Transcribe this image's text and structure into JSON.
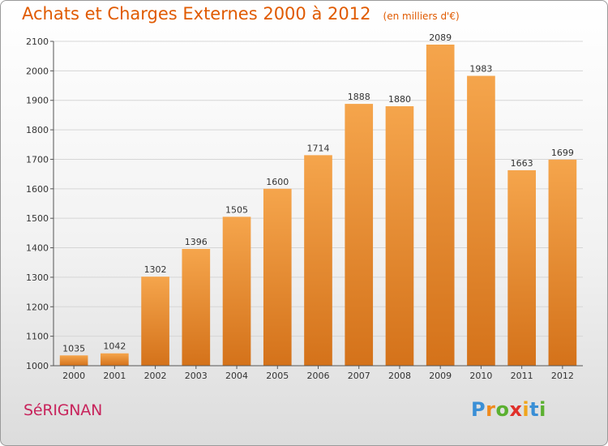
{
  "title": "Achats et Charges Externes 2000 à 2012",
  "subtitle": "(en milliers d'€)",
  "city": "SéRIGNAN",
  "logo": {
    "text": "Proxiti",
    "letter_colors": [
      "#3a8fd6",
      "#f08a1c",
      "#5bb030",
      "#e0302a",
      "#f0a51c",
      "#3a8fd6",
      "#5bb030"
    ]
  },
  "colors": {
    "bar_top": "#f5a54c",
    "bar_bottom": "#d4721a",
    "title": "#e05a00",
    "city": "#c8245c"
  },
  "chart_data": {
    "type": "bar",
    "categories": [
      "2000",
      "2001",
      "2002",
      "2003",
      "2004",
      "2005",
      "2006",
      "2007",
      "2008",
      "2009",
      "2010",
      "2011",
      "2012"
    ],
    "values": [
      1035,
      1042,
      1302,
      1396,
      1505,
      1600,
      1714,
      1888,
      1880,
      2089,
      1983,
      1663,
      1699
    ],
    "ylim": [
      1000,
      2100
    ],
    "yticks": [
      1000,
      1100,
      1200,
      1300,
      1400,
      1500,
      1600,
      1700,
      1800,
      1900,
      2000,
      2100
    ],
    "grid": true,
    "legend": "none",
    "data_labels": true
  }
}
